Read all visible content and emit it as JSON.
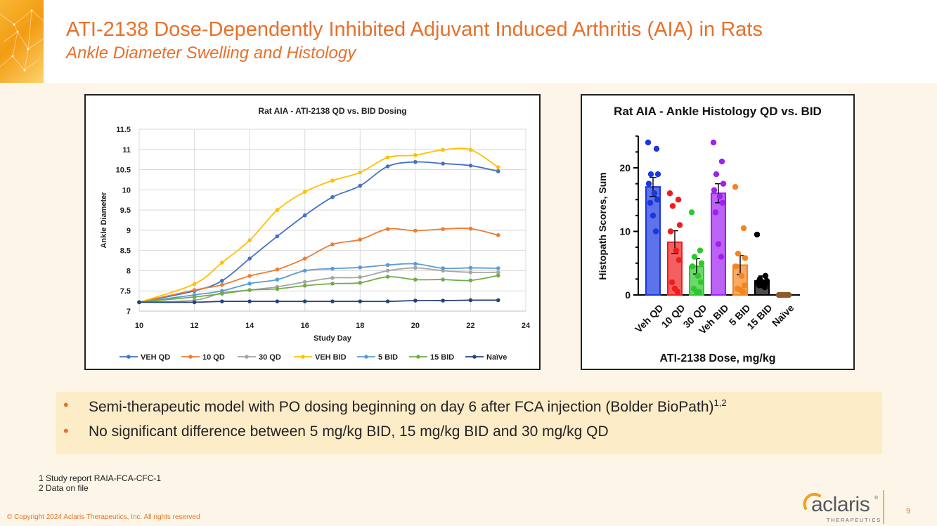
{
  "header": {
    "title": "ATI-2138 Dose-Dependently Inhibited Adjuvant Induced Arthritis (AIA) in Rats",
    "subtitle": "Ankle Diameter Swelling and Histology"
  },
  "bullets": [
    {
      "text": "Semi-therapeutic model with PO dosing beginning on day 6 after FCA injection (Bolder BioPath)",
      "sup": "1,2"
    },
    {
      "text": "No significant difference between 5 mg/kg BID, 15 mg/kg BID and 30 mg/kg QD",
      "sup": ""
    }
  ],
  "footnotes": [
    "1 Study report RAIA-FCA-CFC-1",
    "2 Data on file"
  ],
  "footer": {
    "copyright": "© Copyright 2024 Aclaris Therapeutics, Inc. All rights reserved",
    "page_number": "9",
    "logo_text": "aclaris",
    "logo_reg": "®",
    "logo_sub": "THERAPEUTICS"
  },
  "chart_data": [
    {
      "type": "line",
      "title": "Rat AIA - ATI-2138 QD vs. BID Dosing",
      "xlabel": "Study Day",
      "ylabel": "Ankle Diameter",
      "xlim": [
        10,
        24
      ],
      "ylim": [
        7,
        11.5
      ],
      "x_ticks": [
        10,
        12,
        14,
        16,
        18,
        20,
        22,
        24
      ],
      "y_ticks": [
        7,
        7.5,
        8,
        8.5,
        9,
        9.5,
        10,
        10.5,
        11,
        11.5
      ],
      "y_tick_labels": [
        "7",
        "7.5",
        "8",
        "8.5",
        "9",
        "9.5",
        "10",
        "10.5",
        "11",
        "11.5"
      ],
      "grid": true,
      "legend_position": "bottom",
      "x": [
        10,
        12,
        13,
        14,
        15,
        16,
        17,
        18,
        19,
        20,
        21,
        22,
        23
      ],
      "series": [
        {
          "name": "VEH QD",
          "color": "#4472c4",
          "values": [
            7.22,
            7.5,
            7.75,
            8.3,
            8.85,
            9.37,
            9.82,
            10.1,
            10.58,
            10.69,
            10.65,
            10.6,
            10.46
          ]
        },
        {
          "name": "10 QD",
          "color": "#ed7d31",
          "values": [
            7.22,
            7.52,
            7.65,
            7.87,
            8.03,
            8.3,
            8.65,
            8.77,
            9.03,
            8.99,
            9.03,
            9.04,
            8.88
          ]
        },
        {
          "name": "30 QD",
          "color": "#a5a5a5",
          "values": [
            7.22,
            7.27,
            7.45,
            7.52,
            7.6,
            7.72,
            7.82,
            7.84,
            8.0,
            8.07,
            8.0,
            7.96,
            7.96
          ]
        },
        {
          "name": "VEH BID",
          "color": "#ffc000",
          "values": [
            7.22,
            7.67,
            8.2,
            8.75,
            9.5,
            9.95,
            10.23,
            10.43,
            10.8,
            10.86,
            10.99,
            10.99,
            10.56
          ]
        },
        {
          "name": "5 BID",
          "color": "#5b9bd5",
          "values": [
            7.22,
            7.4,
            7.5,
            7.68,
            7.78,
            8.0,
            8.05,
            8.08,
            8.14,
            8.17,
            8.06,
            8.07,
            8.06
          ]
        },
        {
          "name": "15 BID",
          "color": "#70ad47",
          "values": [
            7.22,
            7.35,
            7.43,
            7.52,
            7.55,
            7.63,
            7.68,
            7.7,
            7.85,
            7.78,
            7.78,
            7.76,
            7.88
          ]
        },
        {
          "name": "Naïve",
          "color": "#264478",
          "values": [
            7.22,
            7.22,
            7.24,
            7.24,
            7.24,
            7.24,
            7.24,
            7.24,
            7.24,
            7.26,
            7.26,
            7.27,
            7.27
          ]
        }
      ]
    },
    {
      "type": "bar",
      "title": "Rat AIA - Ankle Histology QD vs. BID",
      "xlabel": "ATI-2138 Dose, mg/kg",
      "ylabel": "Histopath Scores, Sum",
      "ylim": [
        0,
        25
      ],
      "y_ticks": [
        0,
        10,
        20
      ],
      "y_tick_labels": [
        "0",
        "10",
        "20"
      ],
      "categories": [
        "Veh QD",
        "10 QD",
        "30 QD",
        "Veh BID",
        "5 BID",
        "15 BID",
        "Naïve"
      ],
      "values": [
        17,
        8.3,
        4.5,
        16,
        4.7,
        2.2,
        0
      ],
      "errors": [
        1.5,
        1.8,
        1.2,
        1.5,
        1.5,
        0.8,
        0
      ],
      "colors": [
        "#1a36e0",
        "#ee1c1c",
        "#2dc82d",
        "#a020f0",
        "#f5841f",
        "#000000",
        "#8b5a2b"
      ],
      "points": [
        [
          24,
          23,
          19,
          19,
          17.5,
          16,
          15,
          14.5,
          12.5,
          10
        ],
        [
          16,
          15,
          14,
          11,
          10,
          7,
          5.5,
          2,
          1,
          0.5
        ],
        [
          13,
          7,
          6,
          5,
          4.5,
          3,
          2,
          1,
          0.5,
          0.5
        ],
        [
          24,
          21,
          19,
          17.5,
          16.5,
          15.5,
          14.5,
          13,
          8,
          6
        ],
        [
          17,
          10.5,
          6.5,
          5.8,
          4.5,
          3,
          1.5,
          1,
          0.8,
          0.5
        ],
        [
          9.5,
          3,
          2.5,
          2.2,
          2,
          2,
          1.8,
          1.5,
          1.5,
          1.2
        ],
        [
          0,
          0,
          0,
          0,
          0
        ]
      ]
    }
  ]
}
